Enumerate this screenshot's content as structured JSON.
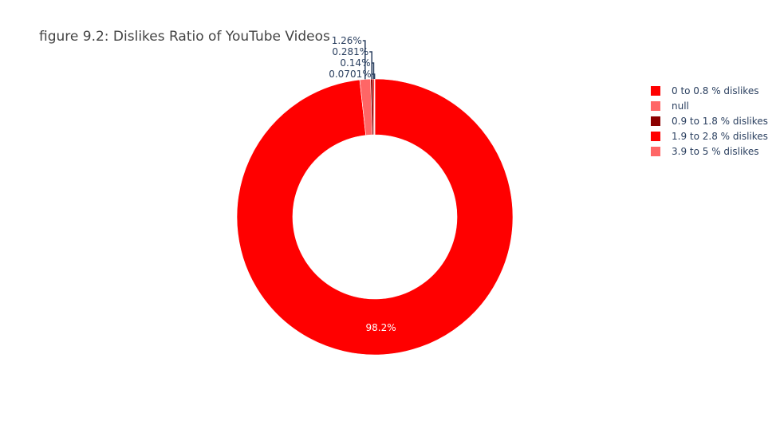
{
  "chart_data": {
    "type": "pie",
    "hole": true,
    "title": "figure 9.2: Dislikes Ratio of YouTube Videos",
    "legend_position": "right",
    "categories": [
      "0 to 0.8 % dislikes",
      "null",
      "0.9 to 1.8 % dislikes",
      "1.9 to 2.8 % dislikes",
      "3.9 to 5 % dislikes"
    ],
    "values": [
      98.2,
      1.26,
      0.281,
      0.14,
      0.0701
    ],
    "labels": [
      "98.2%",
      "1.26%",
      "0.281%",
      "0.14%",
      "0.0701%"
    ],
    "colors": [
      "#ff0000",
      "#ff6666",
      "#8b0000",
      "#ff0000",
      "#ff6666"
    ]
  }
}
